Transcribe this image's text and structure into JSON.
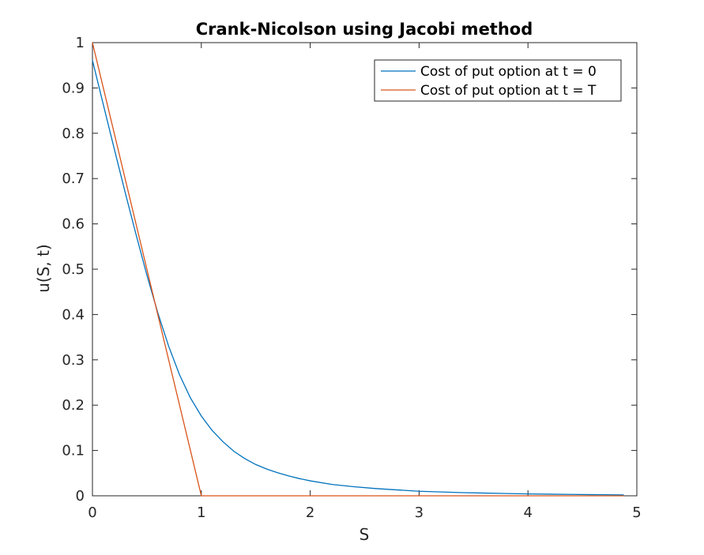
{
  "chart_data": {
    "type": "line",
    "title": "Crank-Nicolson using Jacobi method",
    "xlabel": "S",
    "ylabel": "u(S, t)",
    "xlim": [
      0,
      5
    ],
    "ylim": [
      0,
      1
    ],
    "xticks": [
      0,
      1,
      2,
      3,
      4,
      5
    ],
    "xtick_labels": [
      "0",
      "1",
      "2",
      "3",
      "4",
      "5"
    ],
    "yticks": [
      0,
      0.1,
      0.2,
      0.3,
      0.4,
      0.5,
      0.6,
      0.7,
      0.8,
      0.9,
      1
    ],
    "ytick_labels": [
      "0",
      "0.1",
      "0.2",
      "0.3",
      "0.4",
      "0.5",
      "0.6",
      "0.7",
      "0.8",
      "0.9",
      "1"
    ],
    "grid": false,
    "legend_position": "top-right",
    "series": [
      {
        "name": "Cost of put option at t = 0",
        "color": "#0072BD",
        "x": [
          0,
          0.1,
          0.2,
          0.3,
          0.4,
          0.5,
          0.6,
          0.7,
          0.8,
          0.9,
          1.0,
          1.1,
          1.2,
          1.3,
          1.4,
          1.5,
          1.6,
          1.7,
          1.8,
          1.9,
          2.0,
          2.2,
          2.4,
          2.6,
          2.8,
          3.0,
          3.2,
          3.4,
          3.6,
          3.8,
          4.0,
          4.2,
          4.4,
          4.6,
          4.88
        ],
        "y": [
          0.961,
          0.863,
          0.766,
          0.67,
          0.577,
          0.487,
          0.404,
          0.33,
          0.267,
          0.216,
          0.176,
          0.144,
          0.119,
          0.098,
          0.082,
          0.069,
          0.059,
          0.051,
          0.044,
          0.038,
          0.033,
          0.025,
          0.02,
          0.016,
          0.013,
          0.01,
          0.0085,
          0.007,
          0.006,
          0.005,
          0.0042,
          0.0036,
          0.003,
          0.0025,
          0.002
        ]
      },
      {
        "name": "Cost of put option at t = T",
        "color": "#D95319",
        "x": [
          0,
          1,
          4.88
        ],
        "y": [
          1,
          0,
          0
        ]
      }
    ]
  }
}
